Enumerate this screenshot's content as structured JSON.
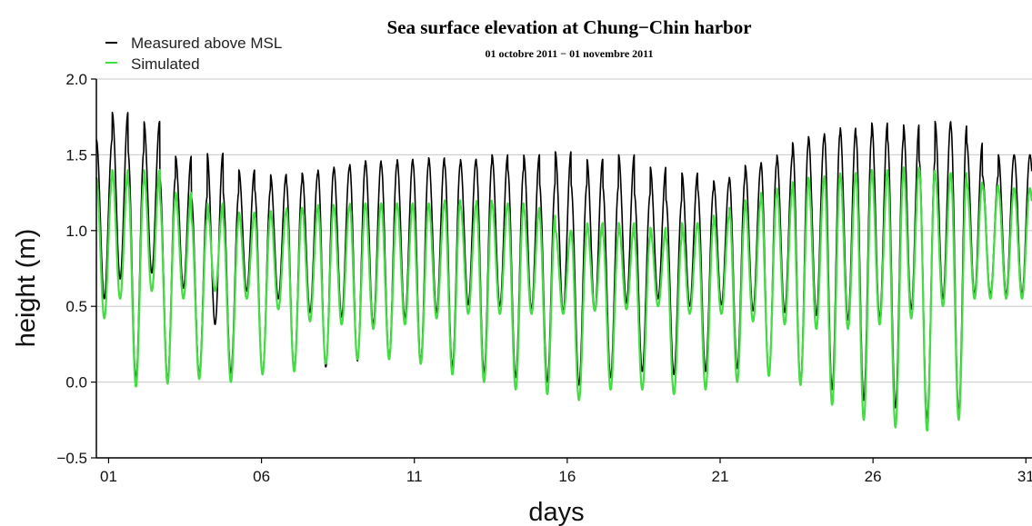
{
  "chart_data": {
    "type": "line",
    "title": "Sea surface elevation at Chung−Chin harbor",
    "subtitle": "01 octobre 2011 − 01 novembre 2011",
    "xlabel": "days",
    "ylabel": "height (m)",
    "xlim": [
      0.6,
      31.2
    ],
    "ylim": [
      -0.5,
      2.0
    ],
    "x_ticks": [
      1,
      6,
      11,
      16,
      21,
      26,
      31
    ],
    "x_tick_labels": [
      "01",
      "06",
      "11",
      "16",
      "21",
      "26",
      "31"
    ],
    "y_ticks": [
      -0.5,
      0.0,
      0.5,
      1.0,
      1.5,
      2.0
    ],
    "y_tick_labels": [
      "−0.5",
      "0.0",
      "0.5",
      "1.0",
      "1.5",
      "2.0"
    ],
    "grid": true,
    "legend": "top-left",
    "series": [
      {
        "name": "Measured above MSL",
        "color": "#000000",
        "highs": [
          1.6,
          1.78,
          1.52,
          1.72,
          1.35,
          1.49,
          1.22,
          1.51,
          1.25,
          1.4,
          1.27,
          1.37,
          1.32,
          1.38,
          1.4,
          1.42,
          1.44,
          1.46,
          1.44,
          1.47,
          1.45,
          1.48,
          1.44,
          1.47,
          1.45,
          1.5,
          1.4,
          1.5,
          1.31,
          1.52,
          1.3,
          1.47,
          1.29,
          1.5,
          1.24,
          1.42,
          1.2,
          1.38,
          1.27,
          1.33,
          1.35,
          1.43,
          1.45,
          1.5,
          1.58,
          1.62,
          1.64,
          1.68,
          1.63,
          1.71,
          1.6,
          1.7,
          1.46,
          1.72,
          1.69,
          1.58,
          1.36,
          1.5
        ],
        "lows": [
          0.55,
          0.68,
          0.02,
          0.72,
          0.02,
          0.62,
          0.05,
          0.38,
          0.06,
          0.6,
          0.05,
          0.55,
          0.08,
          0.46,
          0.1,
          0.43,
          0.14,
          0.38,
          0.16,
          0.42,
          0.14,
          0.46,
          0.1,
          0.51,
          0.06,
          0.5,
          0.03,
          0.48,
          0.0,
          0.46,
          -0.02,
          0.47,
          0.03,
          0.52,
          0.07,
          0.55,
          0.05,
          0.5,
          0.07,
          0.51,
          0.09,
          0.47,
          0.04,
          0.46,
          0.0,
          0.44,
          -0.05,
          0.41,
          -0.12,
          0.42,
          -0.17,
          0.48,
          -0.24,
          0.55,
          -0.2,
          0.58
        ]
      },
      {
        "name": "Simulated",
        "color": "#44dd44",
        "highs": [
          1.35,
          1.4,
          1.32,
          1.4,
          1.22,
          1.25,
          1.08,
          1.18,
          1.08,
          1.12,
          1.1,
          1.13,
          1.15,
          1.15,
          1.17,
          1.16,
          1.18,
          1.18,
          1.18,
          1.18,
          1.17,
          1.18,
          1.2,
          1.17,
          1.2,
          1.18,
          1.18,
          1.15,
          1.1,
          1.0,
          1.0,
          1.05,
          0.98,
          1.05,
          0.96,
          1.02,
          0.95,
          1.05,
          1.05,
          1.1,
          1.15,
          1.2,
          1.25,
          1.28,
          1.32,
          1.35,
          1.36,
          1.38,
          1.38,
          1.4,
          1.37,
          1.42,
          1.4,
          1.38,
          1.38,
          1.32,
          1.3,
          1.28
        ],
        "lows": [
          0.42,
          0.55,
          -0.03,
          0.6,
          -0.01,
          0.55,
          0.02,
          0.6,
          0.0,
          0.55,
          0.05,
          0.48,
          0.07,
          0.4,
          0.12,
          0.38,
          0.15,
          0.35,
          0.15,
          0.38,
          0.12,
          0.42,
          0.05,
          0.45,
          0.0,
          0.45,
          -0.05,
          0.45,
          -0.08,
          0.45,
          -0.12,
          0.47,
          -0.05,
          0.48,
          -0.05,
          0.5,
          -0.08,
          0.45,
          -0.05,
          0.45,
          0.0,
          0.4,
          0.04,
          0.38,
          -0.02,
          0.35,
          -0.15,
          0.35,
          -0.25,
          0.38,
          -0.3,
          0.42,
          -0.32,
          0.5,
          -0.25,
          0.55
        ]
      }
    ]
  }
}
